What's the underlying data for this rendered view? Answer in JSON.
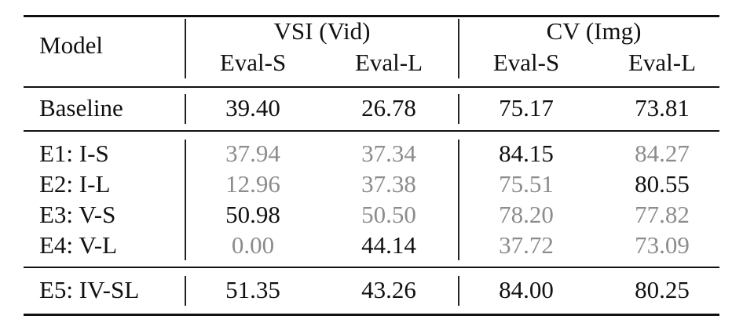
{
  "table": {
    "header": {
      "model": "Model",
      "groups": [
        {
          "label": "VSI (Vid)",
          "sub": [
            "Eval-S",
            "Eval-L"
          ]
        },
        {
          "label": "CV (Img)",
          "sub": [
            "Eval-S",
            "Eval-L"
          ]
        }
      ]
    },
    "colors": {
      "highlight": "#111111",
      "dimmed": "#8c8c8c"
    },
    "rows": [
      {
        "model": "Baseline",
        "values": [
          "39.40",
          "26.78",
          "75.17",
          "73.81"
        ],
        "dim": [
          false,
          false,
          false,
          false
        ]
      },
      {
        "model": "E1: I-S",
        "values": [
          "37.94",
          "37.34",
          "84.15",
          "84.27"
        ],
        "dim": [
          true,
          true,
          false,
          true
        ]
      },
      {
        "model": "E2: I-L",
        "values": [
          "12.96",
          "37.38",
          "75.51",
          "80.55"
        ],
        "dim": [
          true,
          true,
          true,
          false
        ]
      },
      {
        "model": "E3: V-S",
        "values": [
          "50.98",
          "50.50",
          "78.20",
          "77.82"
        ],
        "dim": [
          false,
          true,
          true,
          true
        ]
      },
      {
        "model": "E4: V-L",
        "values": [
          "0.00",
          "44.14",
          "37.72",
          "73.09"
        ],
        "dim": [
          true,
          false,
          true,
          true
        ]
      },
      {
        "model": "E5: IV-SL",
        "values": [
          "51.35",
          "43.26",
          "84.00",
          "80.25"
        ],
        "dim": [
          false,
          false,
          false,
          false
        ]
      }
    ]
  }
}
